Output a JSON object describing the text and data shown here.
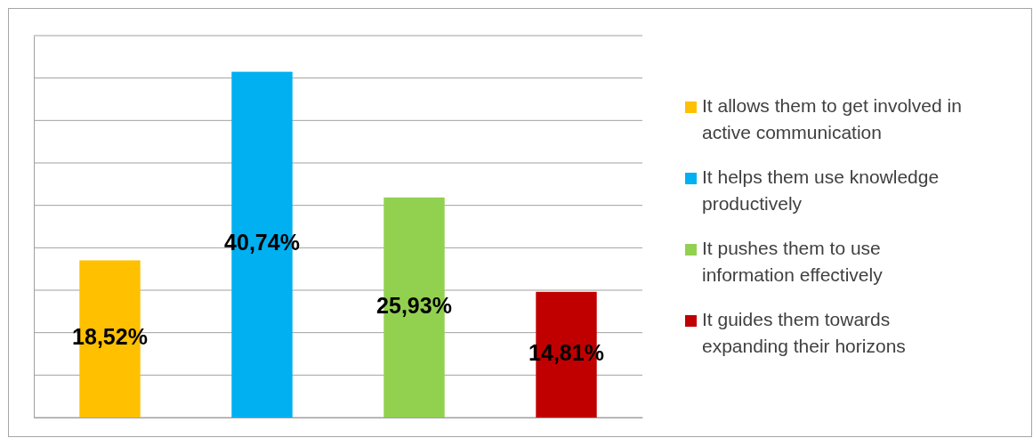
{
  "chart_data": {
    "type": "bar",
    "categories": [
      null,
      null,
      null,
      null
    ],
    "stacked": true,
    "series": [
      {
        "name": "It allows them to get involved in active communication",
        "color": "#ffc000",
        "values": [
          18.52,
          null,
          null,
          null
        ],
        "value_labels": [
          "18,52%",
          null,
          null,
          null
        ]
      },
      {
        "name": "It helps them use knowledge productively",
        "color": "#00b0f0",
        "values": [
          null,
          40.74,
          null,
          null
        ],
        "value_labels": [
          null,
          "40,74%",
          null,
          null
        ]
      },
      {
        "name": "It pushes them to use information effectively",
        "color": "#92d050",
        "values": [
          null,
          null,
          25.93,
          null
        ],
        "value_labels": [
          null,
          null,
          "25,93%",
          null
        ]
      },
      {
        "name": "It guides them towards expanding their horizons",
        "color": "#c00000",
        "values": [
          null,
          null,
          null,
          14.81
        ],
        "value_labels": [
          null,
          null,
          null,
          "14,81%"
        ]
      }
    ],
    "ylim": [
      0,
      45
    ],
    "yticks": [
      {
        "value": 0,
        "label": null
      },
      {
        "value": 5,
        "label": null
      },
      {
        "value": 10,
        "label": null
      },
      {
        "value": 15,
        "label": null
      },
      {
        "value": 20,
        "label": null
      },
      {
        "value": 25,
        "label": null
      },
      {
        "value": 30,
        "label": null
      },
      {
        "value": 35,
        "label": null
      },
      {
        "value": 40,
        "label": null
      },
      {
        "value": 45,
        "label": null
      }
    ],
    "grid": "y",
    "legend": "right"
  }
}
